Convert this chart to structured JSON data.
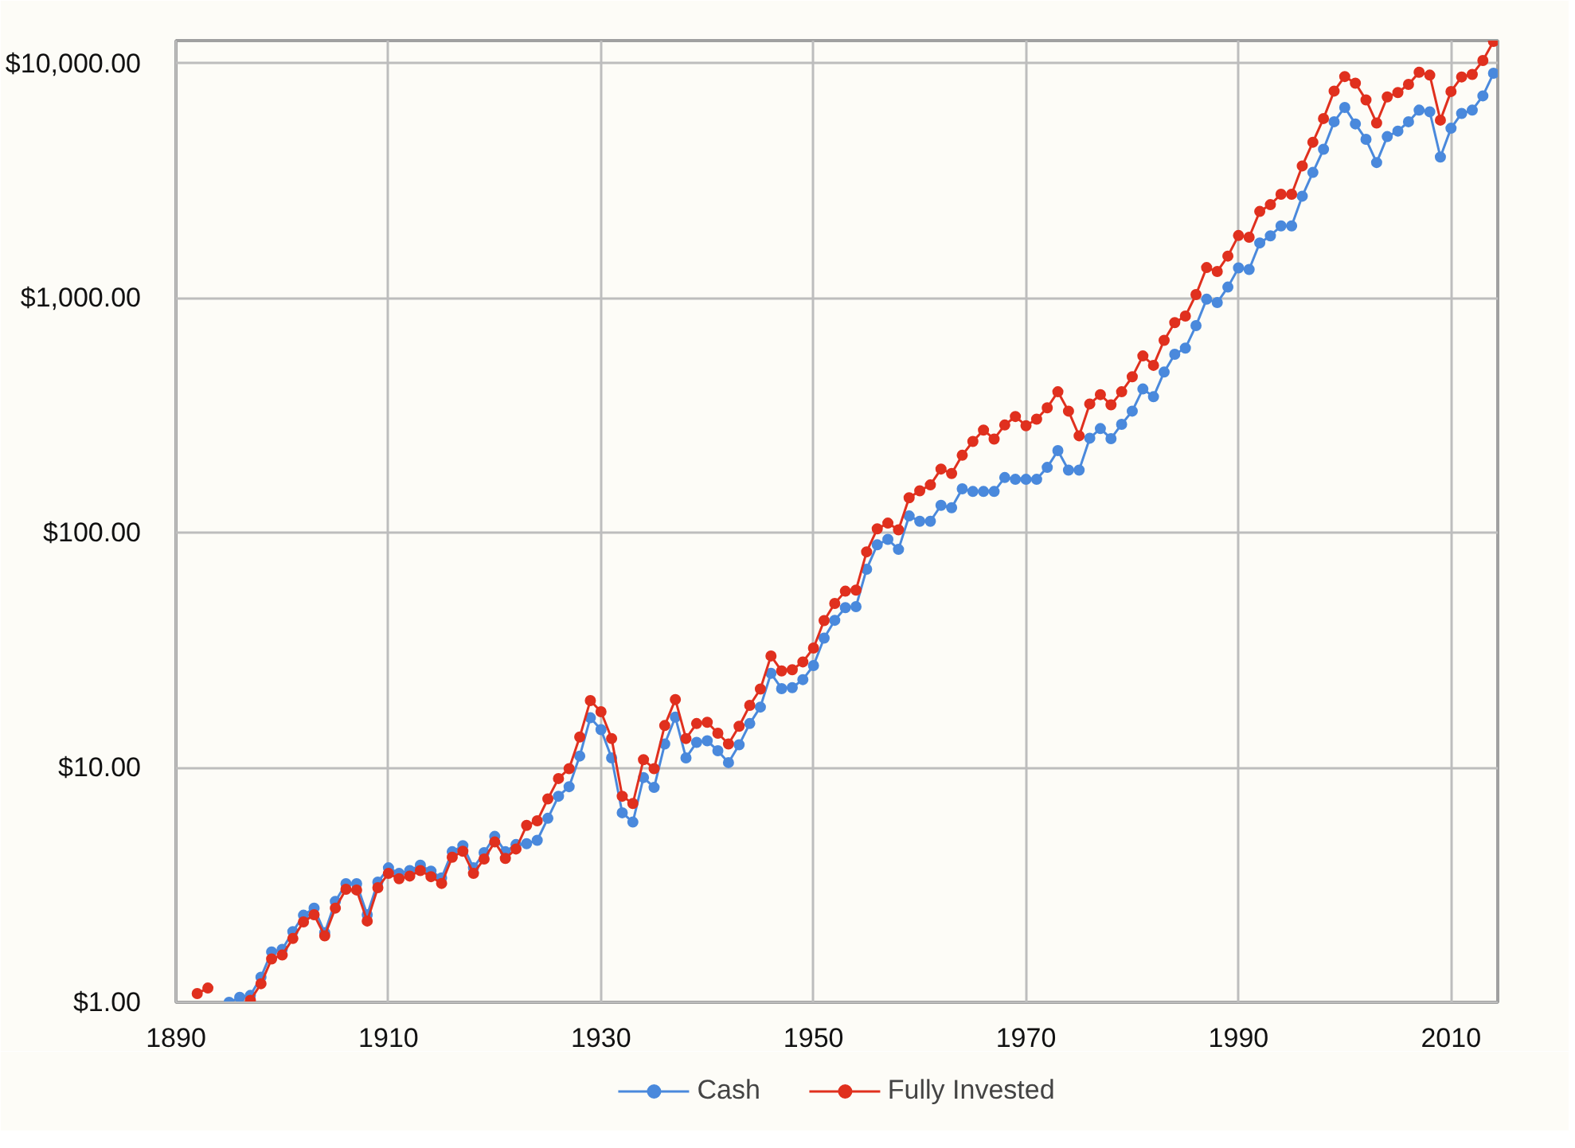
{
  "chart_data": {
    "type": "line",
    "x": [
      1892,
      1893,
      1894,
      1895,
      1896,
      1897,
      1898,
      1899,
      1900,
      1901,
      1902,
      1903,
      1904,
      1905,
      1906,
      1907,
      1908,
      1909,
      1910,
      1911,
      1912,
      1913,
      1914,
      1915,
      1916,
      1917,
      1918,
      1919,
      1920,
      1921,
      1922,
      1923,
      1924,
      1925,
      1926,
      1927,
      1928,
      1929,
      1930,
      1931,
      1932,
      1933,
      1934,
      1935,
      1936,
      1937,
      1938,
      1939,
      1940,
      1941,
      1942,
      1943,
      1944,
      1945,
      1946,
      1947,
      1948,
      1949,
      1950,
      1951,
      1952,
      1953,
      1954,
      1955,
      1956,
      1957,
      1958,
      1959,
      1960,
      1961,
      1962,
      1963,
      1964,
      1965,
      1966,
      1967,
      1968,
      1969,
      1970,
      1971,
      1972,
      1973,
      1974,
      1975,
      1976,
      1977,
      1978,
      1979,
      1980,
      1981,
      1982,
      1983,
      1984,
      1985,
      1986,
      1987,
      1988,
      1989,
      1990,
      1991,
      1992,
      1993,
      1994,
      1995,
      1996,
      1997,
      1998,
      1999,
      2000,
      2001,
      2002,
      2003,
      2004,
      2005,
      2006,
      2007,
      2008,
      2009,
      2010,
      2011,
      2012,
      2013,
      2014
    ],
    "series": [
      {
        "name": "Cash",
        "color": "#4a89dc",
        "values": [
          null,
          null,
          null,
          1.0,
          1.05,
          1.07,
          1.28,
          1.64,
          1.68,
          2.0,
          2.35,
          2.52,
          1.98,
          2.69,
          3.2,
          3.2,
          2.36,
          3.25,
          3.74,
          3.54,
          3.64,
          3.84,
          3.62,
          3.39,
          4.38,
          4.65,
          3.74,
          4.34,
          5.09,
          4.38,
          4.7,
          4.74,
          4.9,
          6.08,
          7.55,
          8.29,
          11.2,
          16.3,
          14.5,
          11.0,
          6.42,
          5.86,
          9.07,
          8.23,
          12.6,
          16.4,
          11.0,
          12.8,
          13.0,
          11.8,
          10.5,
          12.5,
          15.4,
          18.1,
          25.2,
          21.7,
          21.9,
          23.7,
          27.2,
          35.6,
          42.4,
          48,
          48.5,
          70,
          88.9,
          93.8,
          85,
          118,
          112,
          112,
          131,
          128,
          154,
          150,
          150,
          150,
          172,
          169,
          169,
          169,
          190,
          224,
          185,
          185,
          253,
          278,
          252,
          290,
          330,
          410,
          380,
          484,
          576,
          612,
          763,
          989,
          957,
          1114,
          1345,
          1324,
          1718,
          1842,
          2030,
          2030,
          2718,
          3430,
          4304,
          5640,
          6490,
          5520,
          4745,
          3780,
          4875,
          5145,
          5640,
          6320,
          6220,
          3990,
          5290,
          6120,
          6320,
          7270,
          9070
        ]
      },
      {
        "name": "Fully Invested",
        "color": "#e0301e",
        "values": [
          1.09,
          1.15,
          null,
          null,
          null,
          1.02,
          1.2,
          1.53,
          1.59,
          1.87,
          2.2,
          2.36,
          1.92,
          2.52,
          3.03,
          3.01,
          2.22,
          3.08,
          3.54,
          3.36,
          3.45,
          3.64,
          3.43,
          3.21,
          4.15,
          4.4,
          3.54,
          4.08,
          4.82,
          4.1,
          4.5,
          5.67,
          5.93,
          7.35,
          8.98,
          9.9,
          13.5,
          19.3,
          17.3,
          13.3,
          7.55,
          7.03,
          10.8,
          9.9,
          15.1,
          19.5,
          13.3,
          15.4,
          15.6,
          14.0,
          12.6,
          15.0,
          18.4,
          21.6,
          29.9,
          25.8,
          26.1,
          28.2,
          32.3,
          42.3,
          50,
          56.4,
          57,
          83,
          104,
          110,
          103,
          141,
          151,
          160,
          187,
          179,
          214,
          245,
          274,
          251,
          288,
          313,
          286,
          305,
          341,
          399,
          330,
          259,
          354,
          388,
          351,
          399,
          462,
          567,
          517,
          661,
          786,
          838,
          1035,
          1349,
          1298,
          1510,
          1847,
          1816,
          2339,
          2500,
          2770,
          2770,
          3656,
          4613,
          5820,
          7620,
          8785,
          8230,
          6990,
          5570,
          7190,
          7510,
          8140,
          9160,
          8910,
          5730,
          7590,
          8750,
          8970,
          10280,
          12400
        ]
      }
    ],
    "xlim": [
      1890,
      2014.4
    ],
    "xticks": [
      1890,
      1910,
      1930,
      1950,
      1970,
      1990,
      2010
    ],
    "ylim": [
      1,
      12500
    ],
    "yticks": [
      {
        "value": 1,
        "label": "$1.00"
      },
      {
        "value": 10,
        "label": "$10.00"
      },
      {
        "value": 100,
        "label": "$100.00"
      },
      {
        "value": 1000,
        "label": "$1,000.00"
      },
      {
        "value": 10000,
        "label": "$10,000.00"
      }
    ],
    "log": "y",
    "grid": true,
    "legend": "bottom",
    "marker": "circle",
    "line_style": "solid"
  }
}
